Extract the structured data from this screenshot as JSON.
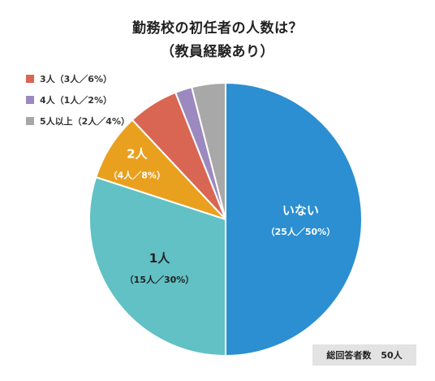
{
  "chart_data": {
    "type": "pie",
    "title_line1": "勤務校の初任者の人数は？",
    "title_line2": "（教員経験あり）",
    "slices": [
      {
        "label": "いない",
        "detail": "（25人／50%）",
        "count": 25,
        "percent": 50,
        "color": "#2b8fd1",
        "label_color": "#ffffff"
      },
      {
        "label": "1人",
        "detail": "（15人／30%）",
        "count": 15,
        "percent": 30,
        "color": "#61c1c5",
        "label_color": "#222222"
      },
      {
        "label": "2人",
        "detail": "（4人／8%）",
        "count": 4,
        "percent": 8,
        "color": "#eaa01f",
        "label_color": "#ffffff"
      },
      {
        "label": "3人",
        "detail": "（3人／6%）",
        "count": 3,
        "percent": 6,
        "color": "#d96652",
        "label_color": "#ffffff"
      },
      {
        "label": "4人",
        "detail": "（1人／2%）",
        "count": 1,
        "percent": 2,
        "color": "#9c89bf",
        "label_color": "#ffffff"
      },
      {
        "label": "5人以上",
        "detail": "（2人／4%）",
        "count": 2,
        "percent": 4,
        "color": "#a8a8a8",
        "label_color": "#ffffff"
      }
    ],
    "legend": [
      {
        "text": "3人（3人／6%）",
        "color": "#d96652"
      },
      {
        "text": "4人（1人／2%）",
        "color": "#9c89bf"
      },
      {
        "text": "5人以上（2人／4%）",
        "color": "#a8a8a8"
      }
    ],
    "total_label": "総回答者数",
    "total_value": "50人"
  }
}
